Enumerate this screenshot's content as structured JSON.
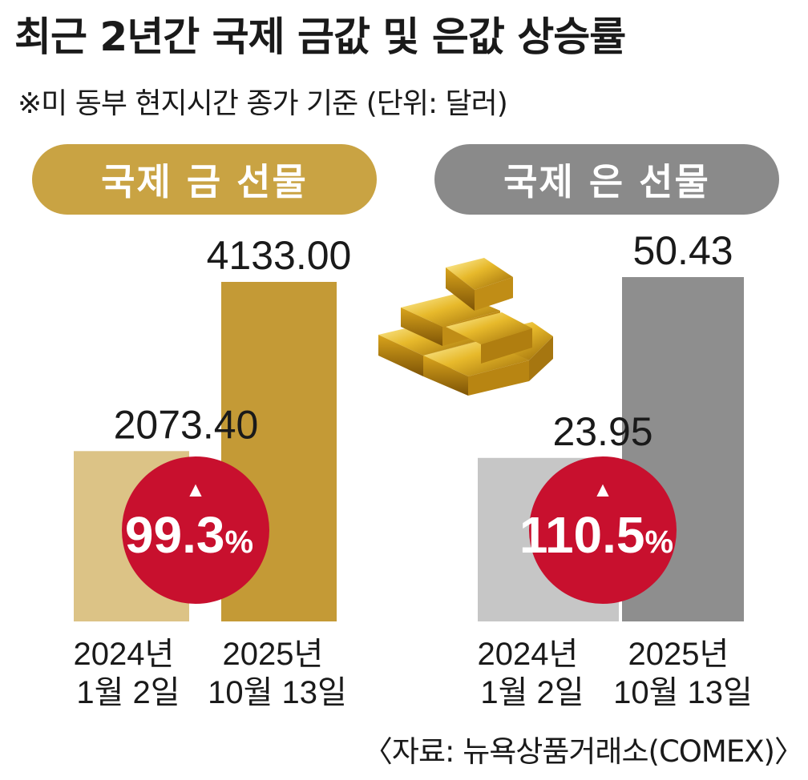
{
  "title": "최근 2년간 국제 금값 및 은값 상승률",
  "subtitle": "※미 동부 현지시간 종가 기준  (단위: 달러)",
  "source": "〈자료: 뉴욕상품거래소(COMEX)〉",
  "colors": {
    "gold_light": "#dcc386",
    "gold_dark": "#c49a36",
    "gold_pill": "#c9a343",
    "silver_light": "#c6c6c6",
    "silver_dark": "#8e8e8e",
    "silver_pill": "#8a8a8a",
    "badge_red": "#c8102e"
  },
  "chart_data": [
    {
      "type": "bar",
      "title": "국제 금 선물",
      "categories": [
        "2024년\n1월 2일",
        "2025년\n10월 13일"
      ],
      "category_lines": [
        [
          "2024년",
          "1월 2일"
        ],
        [
          "2025년",
          "10월 13일"
        ]
      ],
      "values": [
        2073.4,
        4133.0
      ],
      "value_labels": [
        "2073.40",
        "4133.00"
      ],
      "change_arrow": "▲",
      "change_value": "99.3",
      "change_unit": "%"
    },
    {
      "type": "bar",
      "title": "국제 은 선물",
      "categories": [
        "2024년\n1월 2일",
        "2025년\n10월 13일"
      ],
      "category_lines": [
        [
          "2024년",
          "1월 2일"
        ],
        [
          "2025년",
          "10월 13일"
        ]
      ],
      "values": [
        23.95,
        50.43
      ],
      "value_labels": [
        "23.95",
        "50.43"
      ],
      "change_arrow": "▲",
      "change_value": "110.5",
      "change_unit": "%"
    }
  ]
}
